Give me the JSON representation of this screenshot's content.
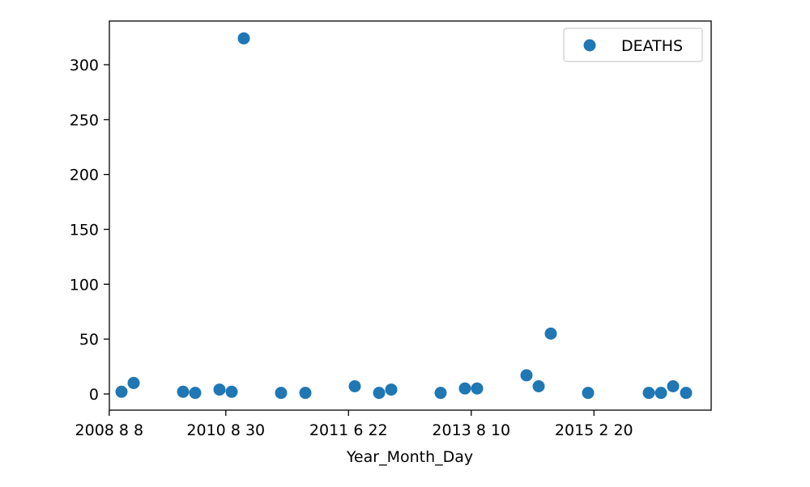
{
  "chart_data": {
    "type": "scatter",
    "xlabel": "Year_Month_Day",
    "ylabel": "",
    "ylim": [
      -15,
      337
    ],
    "grid": false,
    "legend_placement": "top-right",
    "y_ticks": [
      0,
      50,
      100,
      150,
      200,
      250,
      300
    ],
    "x_tick_labels": [
      "2008 8 8",
      "2010 8 30",
      "2011 6 22",
      "2013 8 10",
      "2015 2 20"
    ],
    "series": [
      {
        "name": "DEATHS",
        "color": "#1f77b4",
        "values": [
          2,
          10,
          2,
          1,
          4,
          2,
          324,
          1,
          1,
          7,
          1,
          4,
          1,
          5,
          5,
          17,
          7,
          55,
          1,
          1,
          1,
          7,
          1
        ]
      }
    ]
  }
}
